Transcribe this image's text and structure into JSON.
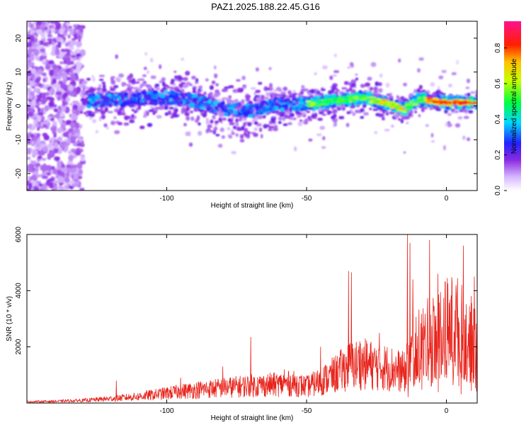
{
  "title": "PAZ1.2025.188.22.45.G16",
  "colors": {
    "snr_line": "#e8241c",
    "axis": "#000000"
  },
  "chart_data": [
    {
      "type": "heatmap",
      "title": "PAZ1.2025.188.22.45.G16",
      "xlabel": "Height of straight line (km)",
      "ylabel": "Frequency (Hz)",
      "xlim": [
        -150,
        11
      ],
      "ylim": [
        -25,
        25
      ],
      "x_ticks": [
        -100,
        -50,
        0
      ],
      "y_ticks": [
        20,
        10,
        0,
        -10,
        -20
      ],
      "x_tick_labels": [
        "-100",
        "-50",
        "0"
      ],
      "y_tick_labels": [
        "20",
        "10",
        "0",
        "-10",
        "-20"
      ],
      "colorbar": {
        "label": "Normalized spectral amplitude",
        "range": [
          0,
          0.95
        ],
        "ticks": [
          0,
          0.2,
          0.4,
          0.6,
          0.8
        ],
        "tick_labels": [
          "0.0",
          "0.2",
          "0.4",
          "0.6",
          "0.8"
        ],
        "colormap": "rainbow (white-purple-blue-cyan-green-yellow-red-magenta)"
      },
      "ridge": {
        "description": "dominant frequency ridge",
        "points": [
          [
            -128,
            1.5
          ],
          [
            -115,
            2.0
          ],
          [
            -100,
            2.5
          ],
          [
            -90,
            1.5
          ],
          [
            -80,
            -1.0
          ],
          [
            -70,
            -1.5
          ],
          [
            -60,
            0.5
          ],
          [
            -50,
            0.5
          ],
          [
            -40,
            1.5
          ],
          [
            -30,
            2.5
          ],
          [
            -20,
            0.5
          ],
          [
            -15,
            -1.0
          ],
          [
            -10,
            2.0
          ],
          [
            0,
            1.0
          ],
          [
            10,
            1.0
          ]
        ],
        "peak_amplitude_region": [
          -5,
          3
        ]
      }
    },
    {
      "type": "line",
      "xlabel": "Height of straight line (km)",
      "ylabel": "SNR (10 * v/v)",
      "xlim": [
        -150,
        11
      ],
      "ylim": [
        0,
        6000
      ],
      "x_ticks": [
        -100,
        -50,
        0
      ],
      "y_ticks": [
        2000,
        4000,
        6000
      ],
      "x_tick_labels": [
        "-100",
        "-50",
        "0"
      ],
      "y_tick_labels": [
        "2000",
        "4000",
        "6000"
      ],
      "series": [
        {
          "envelope": {
            "x": [
              -150,
              -140,
              -130,
              -120,
              -110,
              -100,
              -90,
              -80,
              -70,
              -60,
              -55,
              -50,
              -45,
              -40,
              -35,
              -30,
              -25,
              -20,
              -15,
              -13,
              -10,
              -8,
              -5,
              -3,
              0,
              3,
              5,
              8,
              11
            ],
            "y": [
              60,
              80,
              120,
              200,
              300,
              450,
              600,
              700,
              800,
              850,
              900,
              750,
              1000,
              1300,
              1700,
              1800,
              1700,
              1600,
              1400,
              2200,
              2600,
              2800,
              3000,
              3200,
              3500,
              3600,
              3400,
              2800,
              3300
            ]
          },
          "peaks": {
            "x": [
              -118,
              -95,
              -80,
              -70,
              -58,
              -45,
              -35,
              -34,
              -31,
              -24,
              -14,
              -13,
              -12,
              -6,
              -3,
              6,
              10
            ],
            "y": [
              800,
              900,
              1300,
              2350,
              1200,
              2000,
              4700,
              4650,
              2200,
              2500,
              6000,
              5700,
              4400,
              5800,
              4600,
              5600,
              4500
            ]
          }
        }
      ]
    }
  ]
}
